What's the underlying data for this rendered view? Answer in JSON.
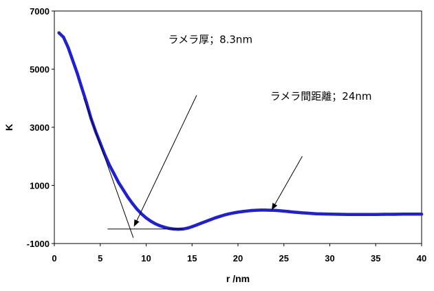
{
  "chart_data": {
    "type": "scatter",
    "title": "",
    "xlabel": "r /nm",
    "ylabel": "K",
    "xlim": [
      0,
      40
    ],
    "ylim": [
      -1000,
      7000
    ],
    "x_ticks": [
      0,
      5,
      10,
      15,
      20,
      25,
      30,
      35,
      40
    ],
    "y_ticks": [
      -1000,
      1000,
      3000,
      5000,
      7000
    ],
    "x_tick_labels": [
      "0",
      "5",
      "10",
      "15",
      "20",
      "25",
      "30",
      "35",
      "40"
    ],
    "y_tick_labels": [
      "-1000",
      "1000",
      "3000",
      "5000",
      "7000"
    ],
    "grid": false,
    "legend": "none",
    "series": [
      {
        "color": "#1f1fd6",
        "x": [
          0.5,
          1,
          1.5,
          2,
          2.5,
          3,
          3.5,
          4,
          4.5,
          5,
          5.5,
          6,
          6.5,
          7,
          7.5,
          8,
          8.5,
          9,
          9.5,
          10,
          10.5,
          11,
          11.5,
          12,
          12.5,
          13,
          13.5,
          14,
          14.5,
          15,
          15.5,
          16,
          16.5,
          17,
          17.5,
          18,
          18.5,
          19,
          19.5,
          20,
          20.5,
          21,
          21.5,
          22,
          22.5,
          23,
          23.5,
          24,
          24.5,
          25,
          25.5,
          26,
          26.5,
          27,
          27.5,
          28,
          28.5,
          29,
          29.5,
          30,
          31,
          32,
          33,
          34,
          35,
          36,
          37,
          38,
          39,
          40
        ],
        "values": [
          6250,
          6100,
          5750,
          5300,
          4850,
          4350,
          3850,
          3300,
          2850,
          2450,
          2050,
          1700,
          1400,
          1100,
          850,
          600,
          380,
          180,
          20,
          -120,
          -230,
          -320,
          -390,
          -440,
          -480,
          -500,
          -510,
          -500,
          -470,
          -420,
          -360,
          -300,
          -240,
          -180,
          -120,
          -70,
          -20,
          20,
          50,
          80,
          100,
          120,
          135,
          145,
          150,
          150,
          145,
          140,
          130,
          115,
          100,
          85,
          70,
          55,
          45,
          35,
          25,
          20,
          15,
          10,
          5,
          0,
          0,
          0,
          0,
          5,
          5,
          10,
          10,
          10
        ]
      }
    ],
    "lines": [
      {
        "x": [
          3.2,
          8.6
        ],
        "values": [
          4000,
          -800
        ]
      },
      {
        "x": [
          5.8,
          14
        ],
        "values": [
          -500,
          -500
        ]
      }
    ],
    "annotations": [
      {
        "text": "ラメラ厚；8.3nm",
        "text_at": [
          12.4,
          5900
        ],
        "arrow_from": [
          15.5,
          4100
        ],
        "arrow_to": [
          8.7,
          -400
        ]
      },
      {
        "text": "ラメラ間距離；24nm",
        "text_at": [
          23.5,
          3950
        ],
        "arrow_from": [
          27,
          2000
        ],
        "arrow_to": [
          23.7,
          170
        ]
      }
    ]
  }
}
